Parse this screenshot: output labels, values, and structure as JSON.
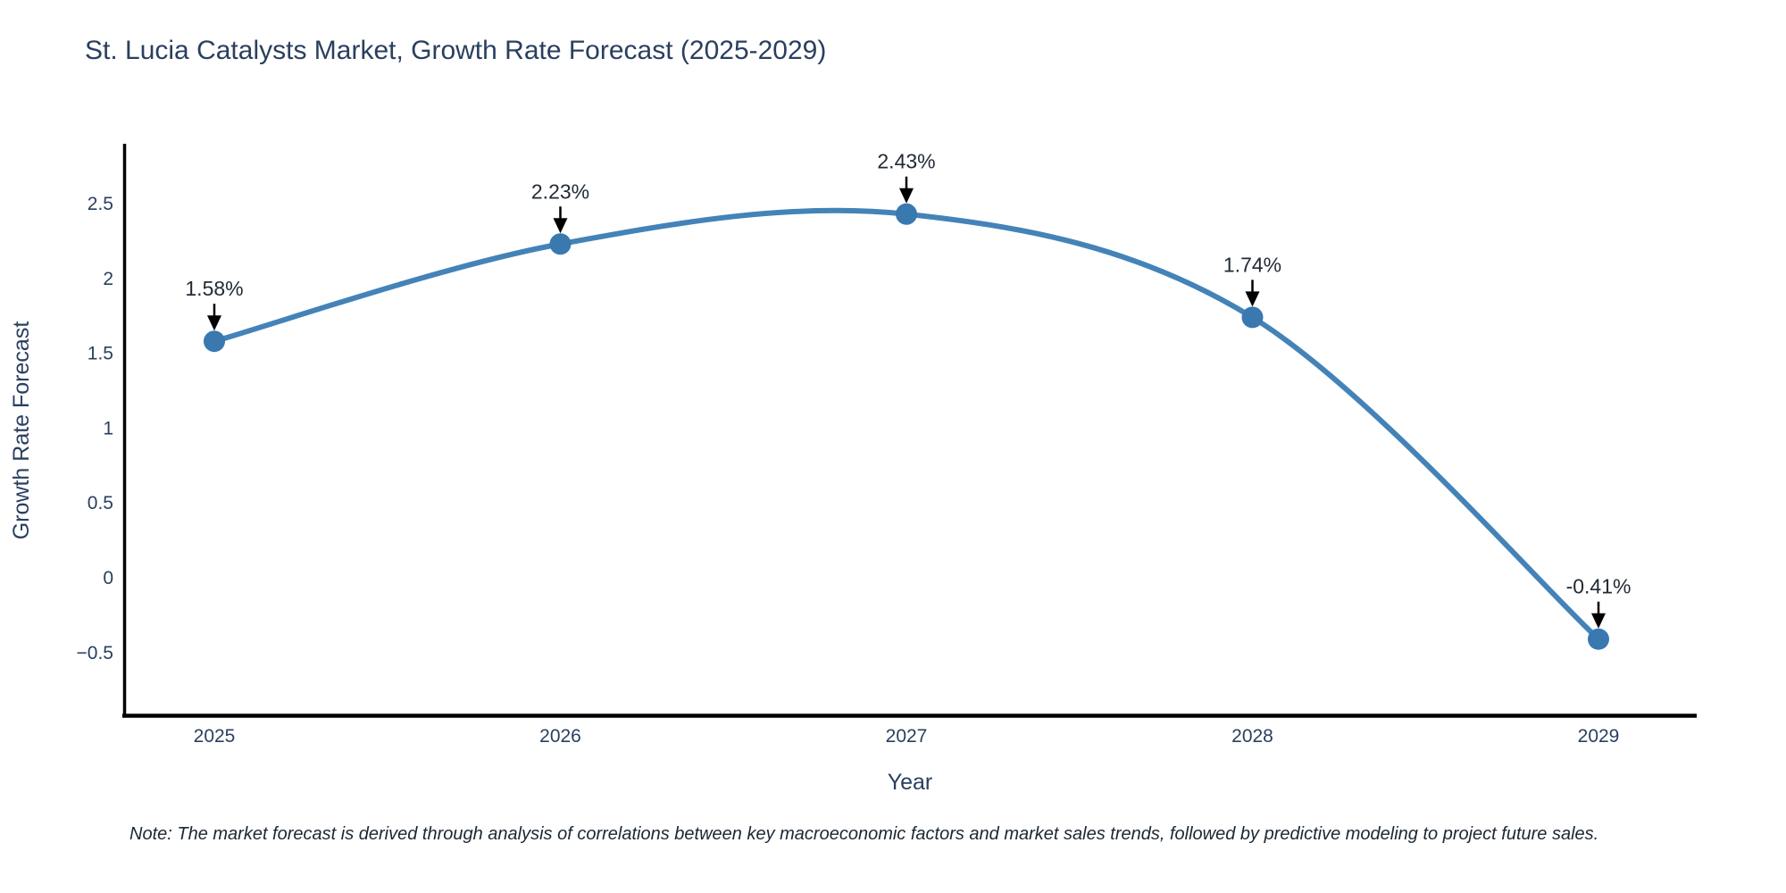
{
  "title": "St. Lucia Catalysts Market, Growth Rate Forecast (2025-2029)",
  "note": "Note: The market forecast is derived through analysis of correlations between key macroeconomic factors and market sales trends, followed by predictive modeling to project future sales.",
  "colors": {
    "line": "#4383b8",
    "marker": "#3a78b0",
    "title": "#2a3f5f",
    "axis": "#000000",
    "tick": "#2a3f5f",
    "annotation_text": "#222a35",
    "annotation_arrow": "#000000"
  },
  "chart_data": {
    "type": "line",
    "title": "St. Lucia Catalysts Market, Growth Rate Forecast (2025-2029)",
    "categories": [
      "2025",
      "2026",
      "2027",
      "2028",
      "2029"
    ],
    "values": [
      1.58,
      2.23,
      2.43,
      1.74,
      -0.41
    ],
    "point_labels": [
      "1.58%",
      "2.23%",
      "2.43%",
      "1.74%",
      "-0.41%"
    ],
    "xlabel": "Year",
    "ylabel": "Growth Rate Forecast",
    "ytick_values": [
      2.5,
      2,
      1.5,
      1,
      0.5,
      0,
      -0.5
    ],
    "ytick_labels": [
      "2.5",
      "2",
      "1.5",
      "1",
      "0.5",
      "0",
      "−0.5"
    ],
    "ylim": [
      -0.93,
      2.9
    ],
    "xlim": [
      2024.74,
      2029.28
    ],
    "grid": false,
    "legend": "none",
    "line_shape": "spline",
    "markers": true,
    "annotation_style": "value-label-with-down-arrow"
  }
}
